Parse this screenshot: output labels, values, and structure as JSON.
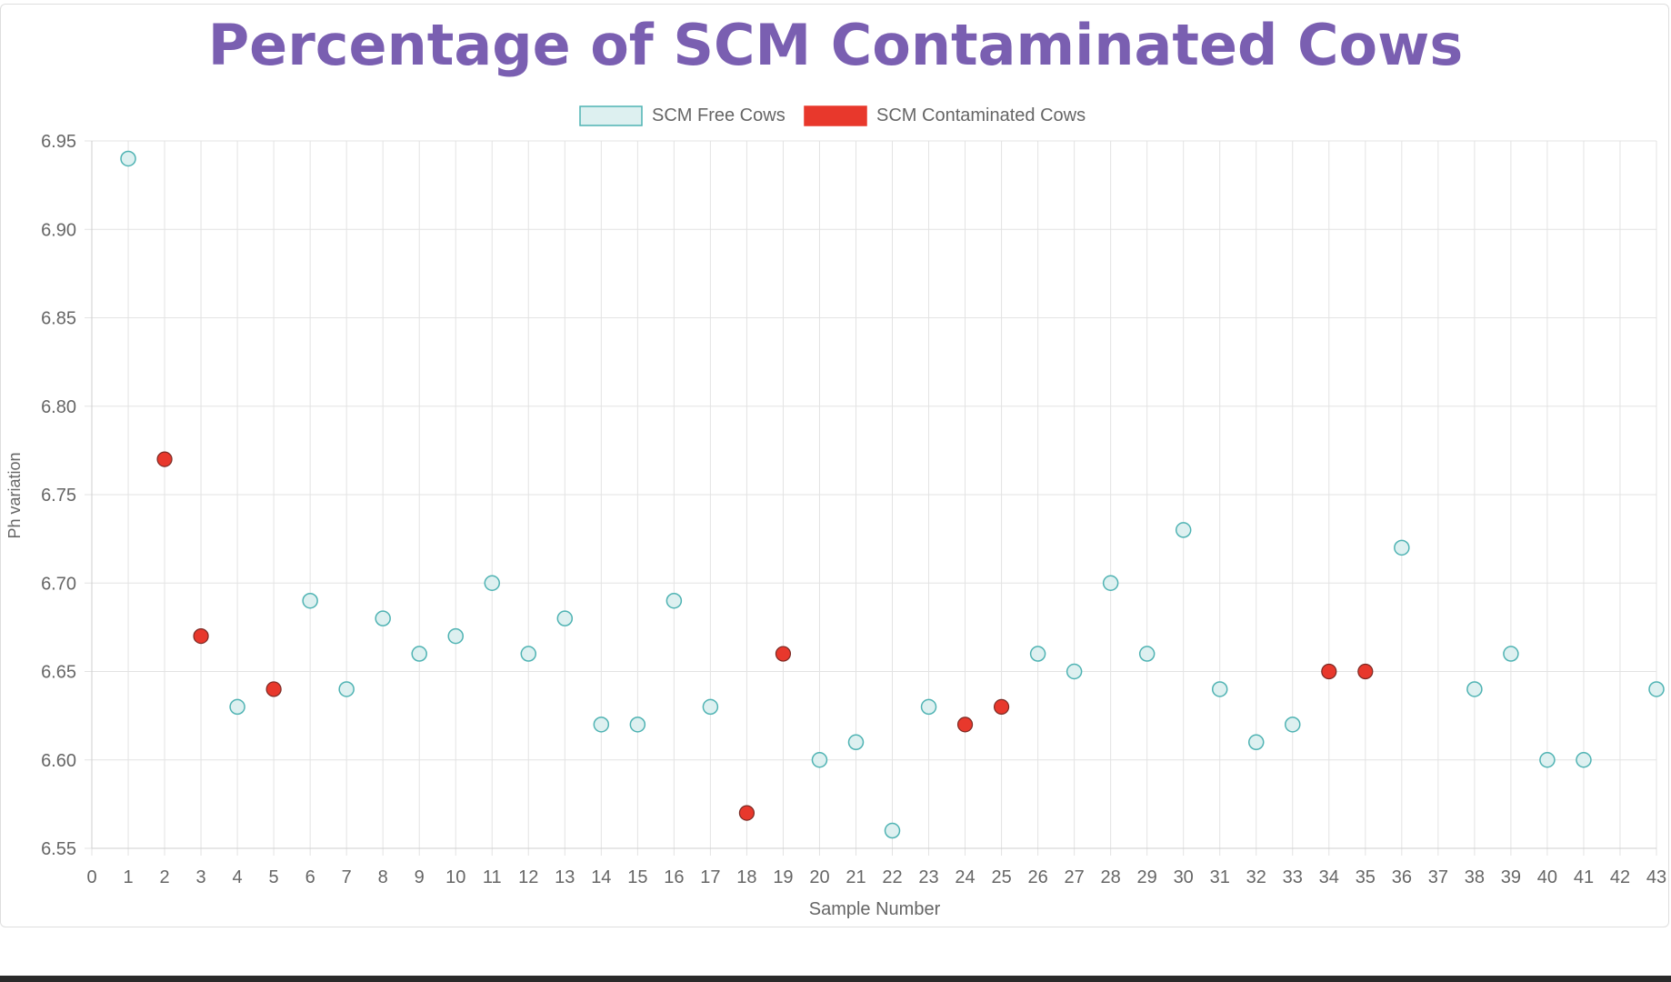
{
  "chart_data": {
    "type": "scatter",
    "title": "Percentage of SCM Contaminated Cows",
    "xlabel": "Sample Number",
    "ylabel": "Ph variation",
    "xlim": [
      0,
      43
    ],
    "ylim": [
      6.55,
      6.95
    ],
    "x_ticks": [
      0,
      1,
      2,
      3,
      4,
      5,
      6,
      7,
      8,
      9,
      10,
      11,
      12,
      13,
      14,
      15,
      16,
      17,
      18,
      19,
      20,
      21,
      22,
      23,
      24,
      25,
      26,
      27,
      28,
      29,
      30,
      31,
      32,
      33,
      34,
      35,
      36,
      37,
      38,
      39,
      40,
      41,
      42,
      43
    ],
    "y_ticks": [
      "6.95",
      "6.90",
      "6.85",
      "6.80",
      "6.75",
      "6.70",
      "6.65",
      "6.60",
      "6.55"
    ],
    "grid": true,
    "legend_position": "top-center",
    "series": [
      {
        "name": "SCM Free Cows",
        "color": "#4fb3b3",
        "fill": "#ddf0f0",
        "points": [
          {
            "x": 1,
            "y": 6.94
          },
          {
            "x": 4,
            "y": 6.63
          },
          {
            "x": 6,
            "y": 6.69
          },
          {
            "x": 7,
            "y": 6.64
          },
          {
            "x": 8,
            "y": 6.68
          },
          {
            "x": 9,
            "y": 6.66
          },
          {
            "x": 10,
            "y": 6.67
          },
          {
            "x": 11,
            "y": 6.7
          },
          {
            "x": 12,
            "y": 6.66
          },
          {
            "x": 13,
            "y": 6.68
          },
          {
            "x": 14,
            "y": 6.62
          },
          {
            "x": 15,
            "y": 6.62
          },
          {
            "x": 16,
            "y": 6.69
          },
          {
            "x": 17,
            "y": 6.63
          },
          {
            "x": 20,
            "y": 6.6
          },
          {
            "x": 21,
            "y": 6.61
          },
          {
            "x": 22,
            "y": 6.56
          },
          {
            "x": 23,
            "y": 6.63
          },
          {
            "x": 26,
            "y": 6.66
          },
          {
            "x": 27,
            "y": 6.65
          },
          {
            "x": 28,
            "y": 6.7
          },
          {
            "x": 29,
            "y": 6.66
          },
          {
            "x": 30,
            "y": 6.73
          },
          {
            "x": 31,
            "y": 6.64
          },
          {
            "x": 32,
            "y": 6.61
          },
          {
            "x": 33,
            "y": 6.62
          },
          {
            "x": 36,
            "y": 6.72
          },
          {
            "x": 38,
            "y": 6.64
          },
          {
            "x": 39,
            "y": 6.66
          },
          {
            "x": 40,
            "y": 6.6
          },
          {
            "x": 41,
            "y": 6.6
          },
          {
            "x": 43,
            "y": 6.64
          }
        ]
      },
      {
        "name": "SCM Contaminated Cows",
        "color": "#e8382c",
        "fill": "#e8382c",
        "points": [
          {
            "x": 2,
            "y": 6.77
          },
          {
            "x": 3,
            "y": 6.67
          },
          {
            "x": 5,
            "y": 6.64
          },
          {
            "x": 18,
            "y": 6.57
          },
          {
            "x": 19,
            "y": 6.66
          },
          {
            "x": 24,
            "y": 6.62
          },
          {
            "x": 25,
            "y": 6.63
          },
          {
            "x": 34,
            "y": 6.65
          },
          {
            "x": 35,
            "y": 6.65
          }
        ]
      }
    ]
  }
}
